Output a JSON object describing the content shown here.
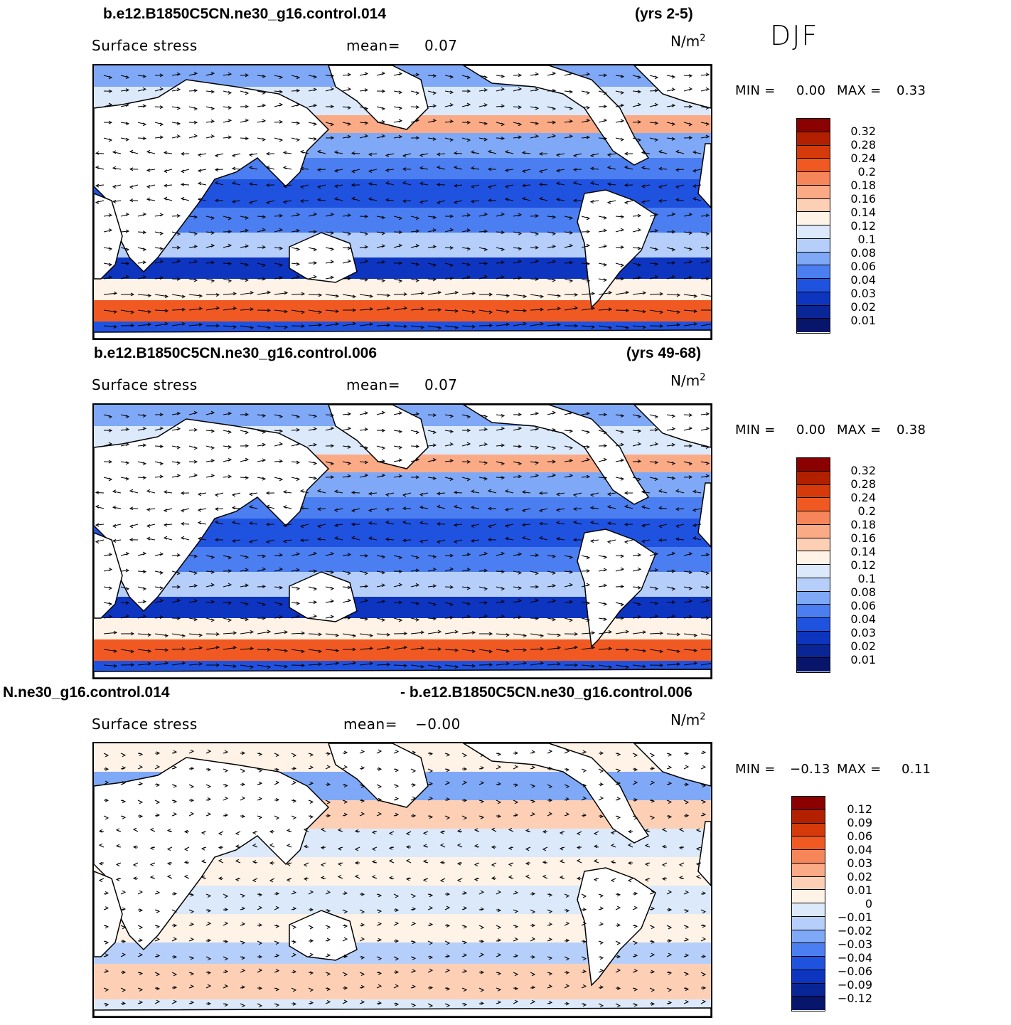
{
  "season": "DJF",
  "panels": [
    {
      "case_left": "b.e12.B1850C5CN.ne30_g16.control.014",
      "case_right": "(yrs 2-5)",
      "variable": "Surface stress",
      "mean_label": "mean=",
      "mean_value": "0.07",
      "units": "N/m",
      "units_exp": "2",
      "min_label": "MIN =",
      "min_value": "0.00",
      "max_label": "MAX =",
      "max_value": "0.33",
      "colorbar": {
        "labels": [
          "0.32",
          "0.28",
          "0.24",
          "0.2",
          "0.18",
          "0.16",
          "0.14",
          "0.12",
          "0.1",
          "0.08",
          "0.06",
          "0.04",
          "0.03",
          "0.02",
          "0.01"
        ],
        "colors": [
          "#8b0000",
          "#b22000",
          "#d63a0a",
          "#f05a22",
          "#f7855a",
          "#fbaa86",
          "#fdd0b6",
          "#fff2e6",
          "#dbe9fb",
          "#b6cffa",
          "#7fa9f7",
          "#4b7ef0",
          "#2052e0",
          "#0d35c0",
          "#0a2596",
          "#07166b"
        ]
      }
    },
    {
      "case_left": "b.e12.B1850C5CN.ne30_g16.control.006",
      "case_right": "(yrs 49-68)",
      "variable": "Surface stress",
      "mean_label": "mean=",
      "mean_value": "0.07",
      "units": "N/m",
      "units_exp": "2",
      "min_label": "MIN =",
      "min_value": "0.00",
      "max_label": "MAX =",
      "max_value": "0.38",
      "colorbar": {
        "labels": [
          "0.32",
          "0.28",
          "0.24",
          "0.2",
          "0.18",
          "0.16",
          "0.14",
          "0.12",
          "0.1",
          "0.08",
          "0.06",
          "0.04",
          "0.03",
          "0.02",
          "0.01"
        ],
        "colors": [
          "#8b0000",
          "#b22000",
          "#d63a0a",
          "#f05a22",
          "#f7855a",
          "#fbaa86",
          "#fdd0b6",
          "#fff2e6",
          "#dbe9fb",
          "#b6cffa",
          "#7fa9f7",
          "#4b7ef0",
          "#2052e0",
          "#0d35c0",
          "#0a2596",
          "#07166b"
        ]
      }
    },
    {
      "case_left": "N.ne30_g16.control.014",
      "case_right": "- b.e12.B1850C5CN.ne30_g16.control.006",
      "variable": "Surface stress",
      "mean_label": "mean=",
      "mean_value": "−0.00",
      "units": "N/m",
      "units_exp": "2",
      "min_label": "MIN =",
      "min_value": "−0.13",
      "max_label": "MAX =",
      "max_value": "0.11",
      "colorbar": {
        "labels": [
          "0.12",
          "0.09",
          "0.06",
          "0.04",
          "0.03",
          "0.02",
          "0.01",
          "0",
          "−0.01",
          "−0.02",
          "−0.03",
          "−0.04",
          "−0.06",
          "−0.09",
          "−0.12"
        ],
        "colors": [
          "#8b0000",
          "#b22000",
          "#d63a0a",
          "#f05a22",
          "#f7855a",
          "#fbaa86",
          "#fdd0b6",
          "#fff2e6",
          "#dbe9fb",
          "#b6cffa",
          "#7fa9f7",
          "#4b7ef0",
          "#2052e0",
          "#0d35c0",
          "#0a2596",
          "#07166b"
        ]
      }
    }
  ]
}
